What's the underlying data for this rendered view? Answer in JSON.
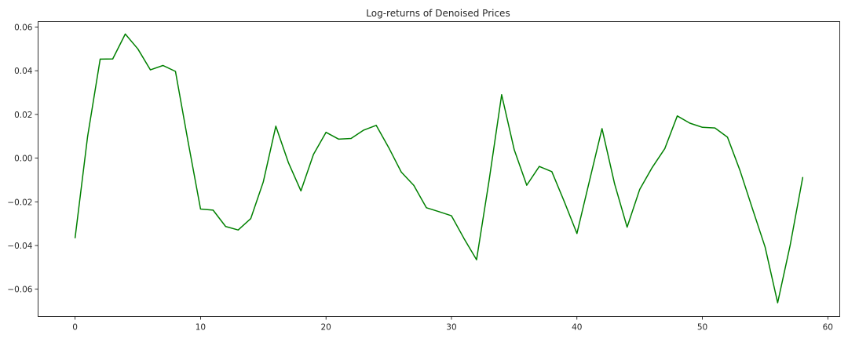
{
  "chart_data": {
    "type": "line",
    "title": "Log-returns of Denoised Prices",
    "xlabel": "",
    "ylabel": "",
    "xlim": [
      -2.95,
      60.95
    ],
    "ylim": [
      -0.0725,
      0.0625
    ],
    "x_ticks": [
      0,
      10,
      20,
      30,
      40,
      50,
      60
    ],
    "x_tick_labels": [
      "0",
      "10",
      "20",
      "30",
      "40",
      "50",
      "60"
    ],
    "y_ticks": [
      0.06,
      0.04,
      0.02,
      0.0,
      -0.02,
      -0.04,
      -0.06
    ],
    "y_tick_labels": [
      "0.06",
      "0.04",
      "0.02",
      "0.00",
      "−0.02",
      "−0.04",
      "−0.06"
    ],
    "grid": false,
    "legend": "none",
    "series": [
      {
        "color": "#008000",
        "x": [
          0,
          1,
          2,
          3,
          4,
          5,
          6,
          7,
          8,
          9,
          10,
          11,
          12,
          13,
          14,
          15,
          16,
          17,
          18,
          19,
          20,
          21,
          22,
          23,
          24,
          25,
          26,
          27,
          28,
          29,
          30,
          31,
          32,
          33,
          34,
          35,
          36,
          37,
          38,
          39,
          40,
          41,
          42,
          43,
          44,
          45,
          46,
          47,
          48,
          49,
          50,
          51,
          52,
          53,
          54,
          55,
          56,
          57,
          58
        ],
        "y": [
          -0.0365,
          0.01,
          0.0453,
          0.0454,
          0.0568,
          0.05,
          0.0404,
          0.0424,
          0.0397,
          0.0077,
          -0.0233,
          -0.0238,
          -0.0313,
          -0.0329,
          -0.0277,
          -0.0109,
          0.0146,
          -0.002,
          -0.015,
          0.0017,
          0.0118,
          0.0087,
          0.009,
          0.0128,
          0.015,
          0.0048,
          -0.0064,
          -0.0125,
          -0.0227,
          -0.0245,
          -0.0264,
          -0.0368,
          -0.0465,
          -0.0102,
          0.029,
          0.0039,
          -0.0124,
          -0.0038,
          -0.0062,
          -0.02,
          -0.0345,
          -0.0104,
          0.0135,
          -0.0117,
          -0.0316,
          -0.0144,
          -0.0043,
          0.0043,
          0.0193,
          0.016,
          0.0141,
          0.0138,
          0.0096,
          -0.0057,
          -0.0233,
          -0.0407,
          -0.0662,
          -0.0398,
          -0.0088
        ]
      }
    ]
  }
}
